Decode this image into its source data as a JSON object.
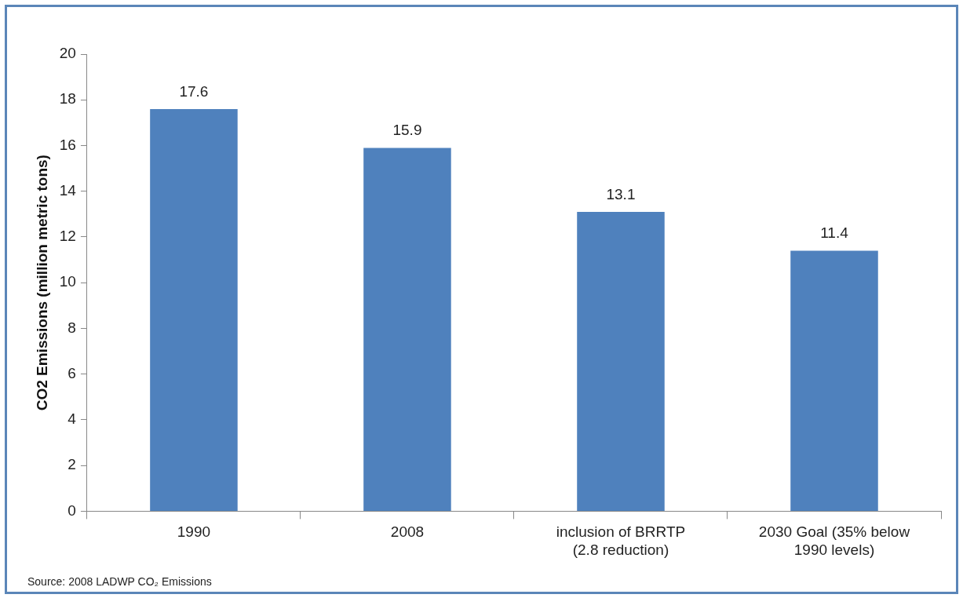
{
  "chart_data": {
    "type": "bar",
    "ylabel": "CO2 Emissions (million metric tons)",
    "categories": [
      "1990",
      "2008",
      "inclusion of BRRTP (2.8 reduction)",
      "2030 Goal (35% below 1990 levels)"
    ],
    "values": [
      17.6,
      15.9,
      13.1,
      11.4
    ],
    "color": "#4f81bd",
    "ylim": [
      0,
      20
    ],
    "yticks": [
      0,
      2,
      4,
      6,
      8,
      10,
      12,
      14,
      16,
      18,
      20
    ],
    "grid": false,
    "legend": false,
    "data_labels": true,
    "annotations": [
      "Source: 2008 LADWP CO₂ Emissions"
    ]
  }
}
